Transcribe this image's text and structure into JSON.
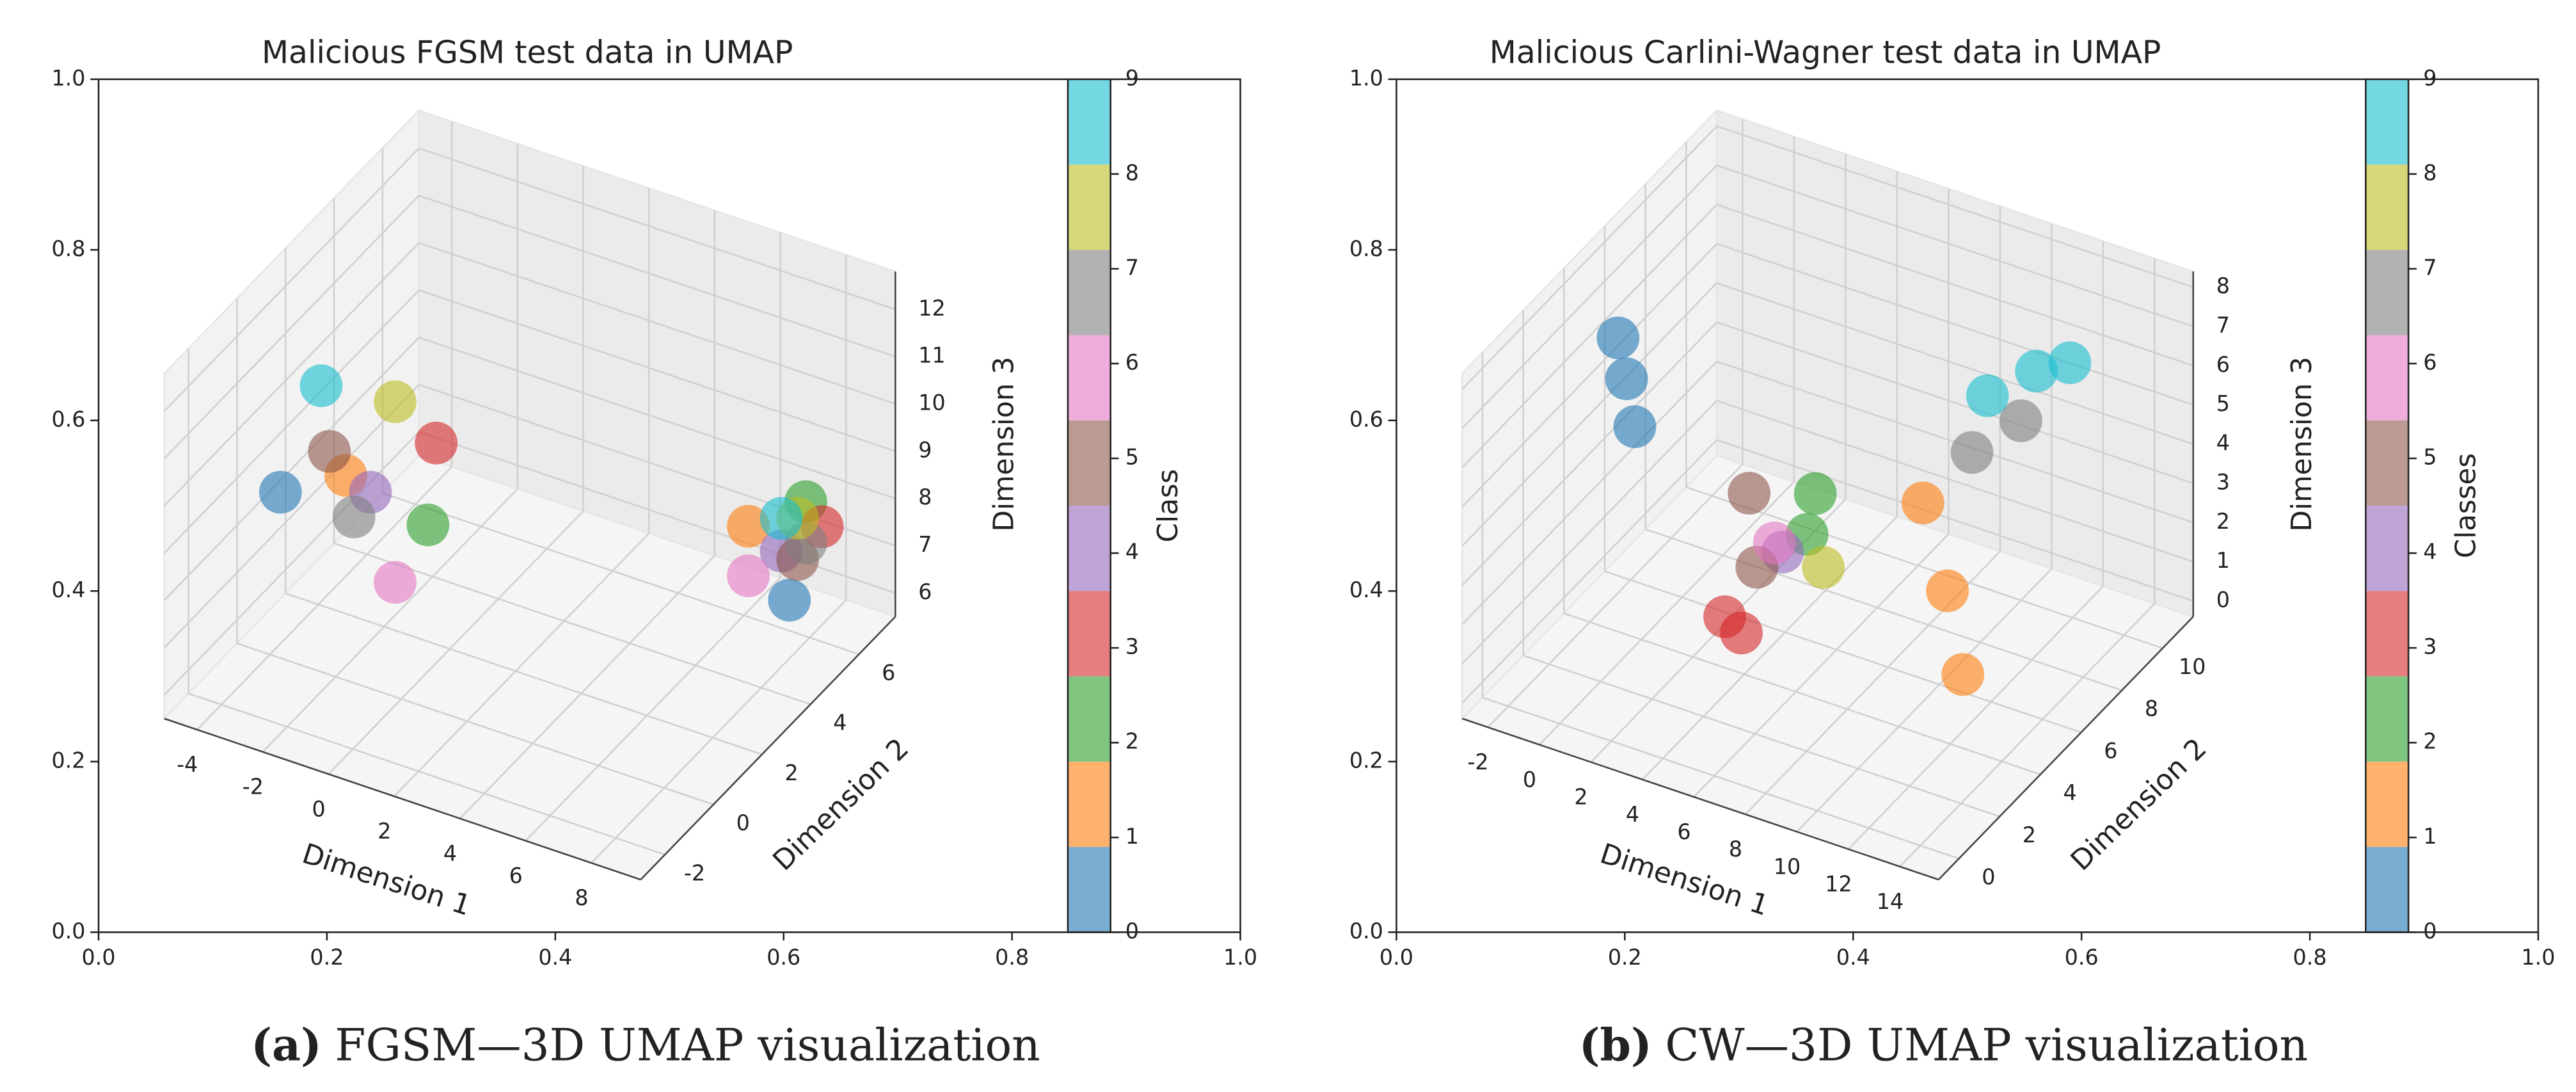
{
  "chart_data": [
    {
      "type": "scatter3d",
      "title": "Malicious FGSM test data in UMAP",
      "caption_label": "(a)",
      "caption": "FGSM—3D UMAP visualization",
      "xlim": [
        0,
        1
      ],
      "xticks": [
        {
          "value": 0,
          "label": "0.0"
        },
        0.2,
        0.4,
        0.6,
        0.8,
        {
          "value": 1,
          "label": "1.0"
        }
      ],
      "ylim": [
        0,
        1
      ],
      "yticks": [
        {
          "value": 0,
          "label": "0.0"
        },
        0.2,
        0.4,
        0.6,
        0.8,
        {
          "value": 1,
          "label": "1.0"
        }
      ],
      "x3_label": "Dimension 1",
      "y3_label": "Dimension 2",
      "z3_label": "Dimension 3",
      "x3lim": [
        -5,
        9.5
      ],
      "x3ticks": [
        -4,
        -2,
        0,
        2,
        4,
        6,
        8
      ],
      "y3lim": [
        -3,
        7.5
      ],
      "y3ticks": [
        -2,
        0,
        2,
        4,
        6
      ],
      "z3lim": [
        5.5,
        12.8
      ],
      "z3ticks": [
        6,
        7,
        8,
        9,
        10,
        11,
        12
      ],
      "colorbar": {
        "label": "Class",
        "lim": [
          0,
          9
        ],
        "ticks": [
          0,
          1,
          2,
          3,
          4,
          5,
          6,
          7,
          8,
          9
        ],
        "colors": [
          "#1f77b4",
          "#ff7f0e",
          "#2ca02c",
          "#d62728",
          "#9467bd",
          "#8c564b",
          "#e377c2",
          "#7f7f7f",
          "#bcbd22",
          "#17becf"
        ]
      },
      "series": [
        {
          "color": "#1f77b4",
          "points": [
            [
              -4.6,
              1.25,
              8.13
            ],
            [
              7.05,
              6.45,
              5.83
            ]
          ]
        },
        {
          "color": "#ff7f0e",
          "points": [
            [
              -3.35,
              2.25,
              8.25
            ],
            [
              5.8,
              6.45,
              7.1
            ]
          ]
        },
        {
          "color": "#2ca02c",
          "points": [
            [
              -0.85,
              2.25,
              7.79
            ],
            [
              7.55,
              6.45,
              8.03
            ]
          ]
        },
        {
          "color": "#d62728",
          "points": [
            [
              -0.6,
              2.25,
              9.58
            ],
            [
              8.05,
              6.45,
              7.62
            ]
          ]
        },
        {
          "color": "#9467bd",
          "points": [
            [
              -2.6,
              2.25,
              8.07
            ],
            [
              6.8,
              6.45,
              6.81
            ]
          ]
        },
        {
          "color": "#8c564b",
          "points": [
            [
              -3.85,
              2.25,
              8.64
            ],
            [
              7.3,
              6.45,
              6.75
            ]
          ]
        },
        {
          "color": "#e377c2",
          "points": [
            [
              -1.85,
              2.25,
              6.34
            ],
            [
              5.8,
              6.45,
              6.05
            ]
          ]
        },
        {
          "color": "#7f7f7f",
          "points": [
            [
              -3.1,
              2.25,
              7.43
            ],
            [
              7.55,
              6.45,
              7.16
            ]
          ]
        },
        {
          "color": "#bcbd22",
          "points": [
            [
              -1.85,
              2.25,
              10.16
            ],
            [
              7.3,
              6.45,
              7.62
            ]
          ]
        },
        {
          "color": "#17becf",
          "points": [
            [
              -4.1,
              2.25,
              9.97
            ],
            [
              6.8,
              6.45,
              7.5
            ]
          ]
        }
      ]
    },
    {
      "type": "scatter3d",
      "title": "Malicious Carlini-Wagner test data in UMAP",
      "caption_label": "(b)",
      "caption": "CW—3D UMAP visualization",
      "xlim": [
        0,
        1
      ],
      "xticks": [
        {
          "value": 0,
          "label": "0.0"
        },
        0.2,
        0.4,
        0.6,
        0.8,
        {
          "value": 1,
          "label": "1.0"
        }
      ],
      "ylim": [
        0,
        1
      ],
      "yticks": [
        {
          "value": 0,
          "label": "0.0"
        },
        0.2,
        0.4,
        0.6,
        0.8,
        {
          "value": 1,
          "label": "1.0"
        }
      ],
      "x3_label": "Dimension 1",
      "y3_label": "Dimension 2",
      "z3_label": "Dimension 3",
      "x3lim": [
        -3,
        15.5
      ],
      "x3ticks": [
        -2,
        0,
        2,
        4,
        6,
        8,
        10,
        12,
        14
      ],
      "y3lim": [
        -1,
        11.5
      ],
      "y3ticks": [
        0,
        2,
        4,
        6,
        8,
        10
      ],
      "z3lim": [
        -0.4,
        8.4
      ],
      "z3ticks": [
        0,
        1,
        2,
        3,
        4,
        5,
        6,
        7,
        8
      ],
      "colorbar": {
        "label": "Classes",
        "lim": [
          0,
          9
        ],
        "ticks": [
          0,
          1,
          2,
          3,
          4,
          5,
          6,
          7,
          8,
          9
        ],
        "colors": [
          "#1f77b4",
          "#ff7f0e",
          "#2ca02c",
          "#d62728",
          "#9467bd",
          "#8c564b",
          "#e377c2",
          "#7f7f7f",
          "#bcbd22",
          "#17becf"
        ]
      },
      "series": [
        {
          "color": "#1f77b4",
          "points": [
            [
              -1.89,
              5.25,
              6.2
            ],
            [
              -1.56,
              5.25,
              5.23
            ],
            [
              -1.24,
              5.25,
              4.08
            ]
          ]
        },
        {
          "color": "#ff7f0e",
          "points": [
            [
              9.95,
              5.25,
              4.62
            ],
            [
              10.9,
              5.25,
              2.59
            ],
            [
              11.5,
              5.25,
              0.59
            ]
          ]
        },
        {
          "color": "#2ca02c",
          "points": [
            [
              5.77,
              5.25,
              3.93
            ],
            [
              5.45,
              5.25,
              2.82
            ]
          ]
        },
        {
          "color": "#d62728",
          "points": [
            [
              2.9,
              5.25,
              -0.26
            ],
            [
              2.25,
              5.25,
              0.01
            ]
          ]
        },
        {
          "color": "#9467bd",
          "points": [
            [
              4.5,
              5.25,
              2.16
            ]
          ]
        },
        {
          "color": "#8c564b",
          "points": [
            [
              3.2,
              5.25,
              3.37
            ],
            [
              3.5,
              5.25,
              1.55
            ]
          ]
        },
        {
          "color": "#e377c2",
          "points": [
            [
              4.18,
              5.25,
              2.32
            ]
          ]
        },
        {
          "color": "#7f7f7f",
          "points": [
            [
              9.8,
              10.25,
              4.0
            ],
            [
              7.9,
              10.25,
              2.77
            ]
          ]
        },
        {
          "color": "#bcbd22",
          "points": [
            [
              6.08,
              5.25,
              2.12
            ]
          ]
        },
        {
          "color": "#17becf",
          "points": [
            [
              10.4,
              10.25,
              5.4
            ],
            [
              8.5,
              10.25,
              4.35
            ],
            [
              11.7,
              10.25,
              5.9
            ]
          ]
        }
      ]
    }
  ]
}
